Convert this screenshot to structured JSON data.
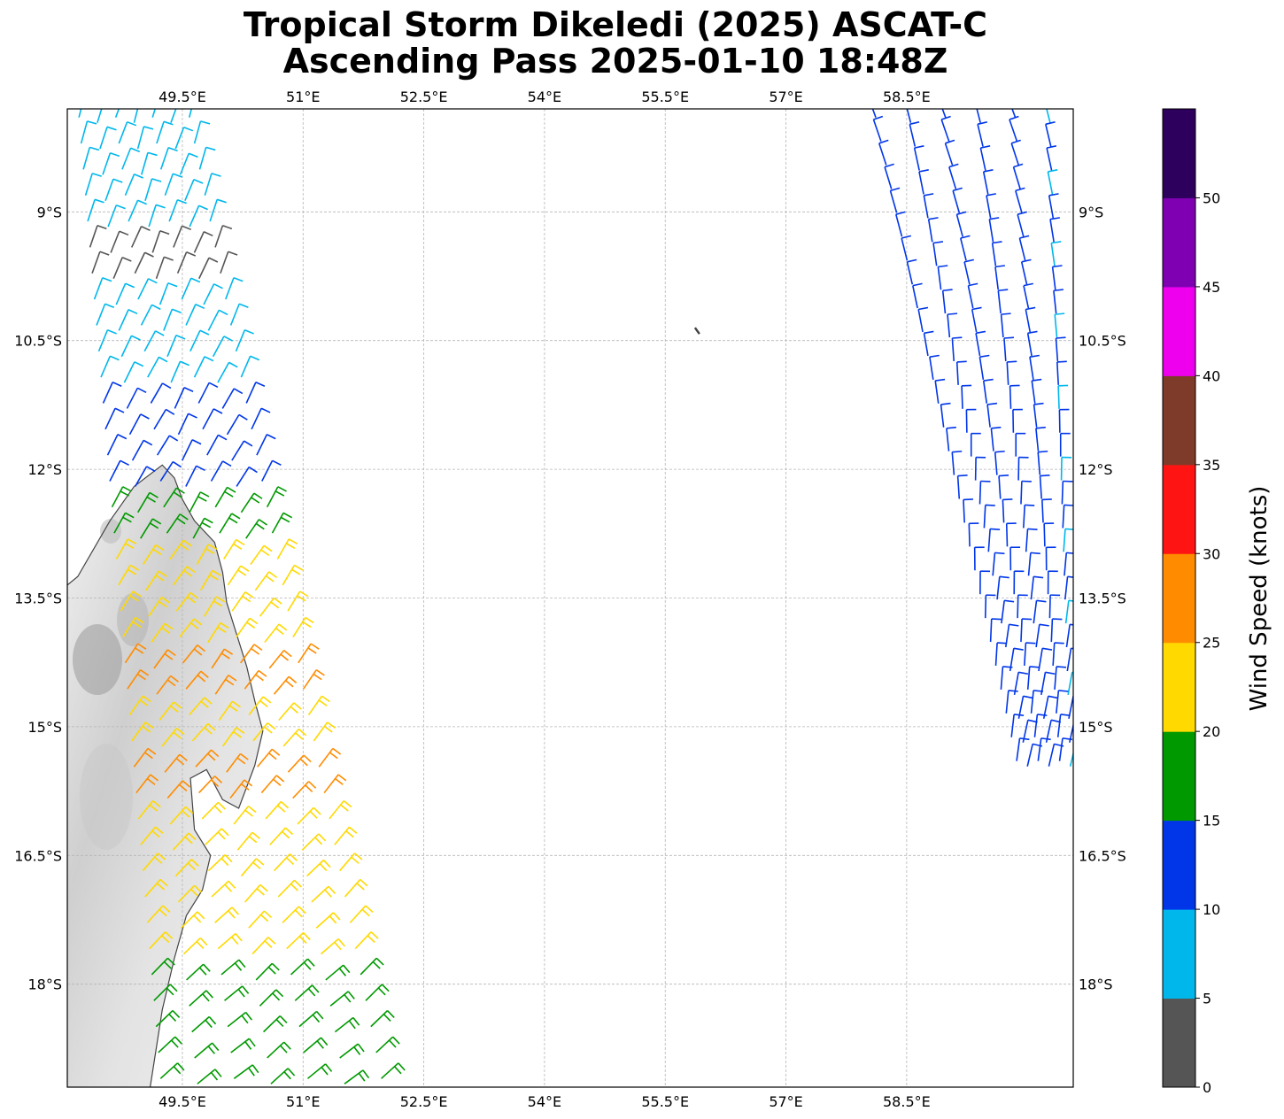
{
  "title": {
    "line1": "Tropical Storm Dikeledi (2025) ASCAT-C",
    "line2": "Ascending Pass 2025-01-10 18:48Z"
  },
  "map": {
    "lon_range": [
      48.07,
      60.57
    ],
    "lat_range": [
      -19.2,
      -7.8
    ],
    "lon_ticks": [
      {
        "value": 49.5,
        "label": "49.5°E"
      },
      {
        "value": 51,
        "label": "51°E"
      },
      {
        "value": 52.5,
        "label": "52.5°E"
      },
      {
        "value": 54,
        "label": "54°E"
      },
      {
        "value": 55.5,
        "label": "55.5°E"
      },
      {
        "value": 57,
        "label": "57°E"
      },
      {
        "value": 58.5,
        "label": "58.5°E"
      }
    ],
    "lat_ticks": [
      {
        "value": -9,
        "label": "9°S"
      },
      {
        "value": -10.5,
        "label": "10.5°S"
      },
      {
        "value": -12,
        "label": "12°S"
      },
      {
        "value": -13.5,
        "label": "13.5°S"
      },
      {
        "value": -15,
        "label": "15°S"
      },
      {
        "value": -16.5,
        "label": "16.5°S"
      },
      {
        "value": -18,
        "label": "18°S"
      }
    ],
    "gridlines": true,
    "land_feature": "madagascar-coast",
    "coastline": [
      [
        49.25,
        -11.95
      ],
      [
        49.4,
        -12.1
      ],
      [
        49.5,
        -12.35
      ],
      [
        49.65,
        -12.6
      ],
      [
        49.9,
        -12.85
      ],
      [
        50.0,
        -13.2
      ],
      [
        50.05,
        -13.55
      ],
      [
        50.15,
        -13.85
      ],
      [
        50.3,
        -14.3
      ],
      [
        50.4,
        -14.7
      ],
      [
        50.5,
        -15.05
      ],
      [
        50.4,
        -15.45
      ],
      [
        50.2,
        -15.95
      ],
      [
        50.0,
        -15.85
      ],
      [
        49.8,
        -15.5
      ],
      [
        49.6,
        -15.6
      ],
      [
        49.65,
        -16.2
      ],
      [
        49.85,
        -16.5
      ],
      [
        49.75,
        -16.9
      ],
      [
        49.55,
        -17.2
      ],
      [
        49.4,
        -17.7
      ],
      [
        49.25,
        -18.3
      ],
      [
        49.1,
        -19.2
      ]
    ],
    "west_coast": [
      [
        48.07,
        -13.35
      ],
      [
        48.2,
        -13.25
      ],
      [
        48.6,
        -12.6
      ],
      [
        48.9,
        -12.2
      ],
      [
        49.25,
        -11.95
      ]
    ],
    "land_color": "#e6e6e6",
    "islets": [
      [
        55.87,
        -10.35
      ]
    ]
  },
  "wind_barbs": {
    "description_units": "knots",
    "west_swath": {
      "color_by_row": [
        "#00b7ec",
        "#00b7ec",
        "#555555",
        "#00b7ec",
        "#00b7ec",
        "#0036e8",
        "#0036e8",
        "#009900",
        "#ffd900",
        "#ffd900",
        "#ff8c00",
        "#ffd900",
        "#ff8c00",
        "#ffd900",
        "#ffd900",
        "#ffd900",
        "#009900",
        "#009900"
      ],
      "lat_top": -7.9,
      "lat_bottom": -19.1,
      "rows": 38,
      "lon_west_at_top": 48.1,
      "lon_east_at_top": 49.7,
      "lon_west_at_bottom": 49.0,
      "lon_east_at_bottom": 52.2
    },
    "east_swath": {
      "lat_top": -7.9,
      "lat_bottom": -15.4,
      "rows": 28,
      "lon_west_at_top": 57.9,
      "lon_east_at_top": 60.5,
      "lon_west_at_bottom": 59.8,
      "lon_east_at_bottom": 60.6
    }
  },
  "colorbar": {
    "label": "Wind Speed (knots)",
    "ticks": [
      "0",
      "5",
      "10",
      "15",
      "20",
      "25",
      "30",
      "35",
      "40",
      "45",
      "50"
    ],
    "colors": [
      "#555555",
      "#00b7ec",
      "#0036e8",
      "#009900",
      "#ffd900",
      "#ff8c00",
      "#ff1414",
      "#7f3b29",
      "#ee00ee",
      "#7f00b2",
      "#2e005e"
    ]
  }
}
